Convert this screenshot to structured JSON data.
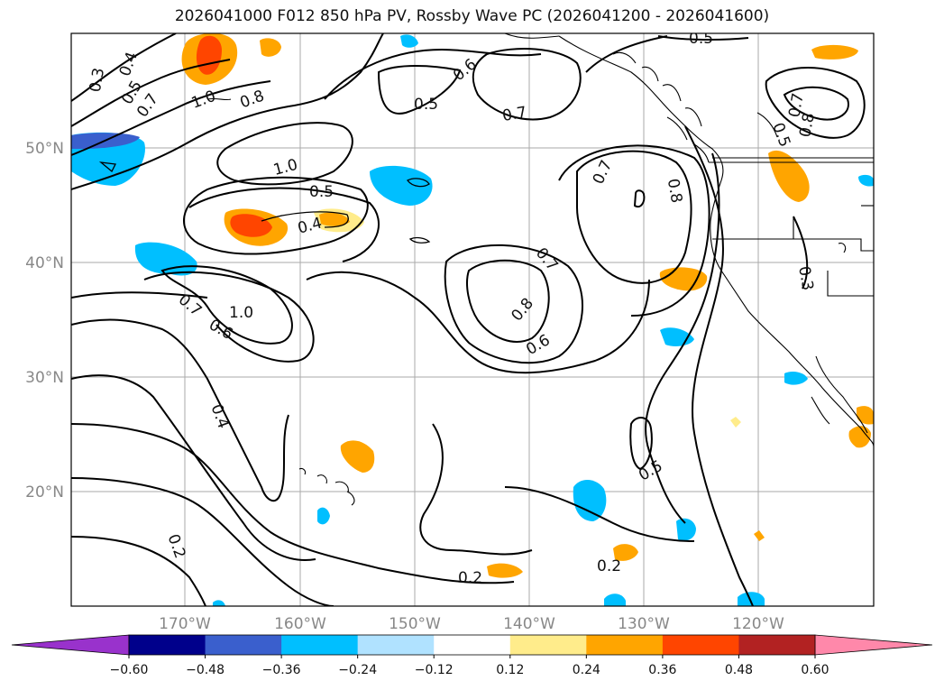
{
  "title": "2026041000 F012 850 hPa PV, Rossby Wave PC (2026041200 - 2026041600)",
  "map": {
    "lon_range": [
      -180,
      -110
    ],
    "lat_range": [
      10,
      60
    ],
    "lon_ticks": [
      -170,
      -160,
      -150,
      -140,
      -130,
      -120
    ],
    "lat_ticks": [
      20,
      30,
      40,
      50
    ],
    "lon_labels": [
      "170°W",
      "160°W",
      "150°W",
      "140°W",
      "130°W",
      "120°W"
    ],
    "lat_labels": [
      "20°N",
      "30°N",
      "40°N",
      "50°N"
    ],
    "gridlines": true
  },
  "contour_labels": [
    "0.3",
    "0.4",
    "0.5",
    "0.7",
    "1.0",
    "0.8",
    "0.5",
    "0.6",
    "0.7",
    "0.5",
    "1.0",
    "0.5",
    "0.4",
    "0.7",
    "0.8",
    "0.7",
    "0.8",
    "0.6",
    "0.7",
    "1.0",
    "0.6",
    "0.4",
    "0.5",
    "0.2",
    "0.2",
    "0.2",
    "0.5",
    "0.8",
    "0.3",
    "0.7"
  ],
  "colorbar": {
    "bounds": [
      -0.72,
      -0.6,
      -0.48,
      -0.36,
      -0.24,
      -0.12,
      0.12,
      0.24,
      0.36,
      0.48,
      0.6,
      0.72
    ],
    "tick_labels": [
      "−0.60",
      "−0.48",
      "−0.36",
      "−0.24",
      "−0.12",
      "0.12",
      "0.24",
      "0.36",
      "0.48",
      "0.60"
    ],
    "colors": [
      "#9932cc",
      "#00008b",
      "#3a5fcd",
      "#00bfff",
      "#b0e2ff",
      "#ffffff",
      "#ffec8b",
      "#ffa500",
      "#ff4500",
      "#b22222",
      "#ff88aa"
    ],
    "extend": "both"
  }
}
